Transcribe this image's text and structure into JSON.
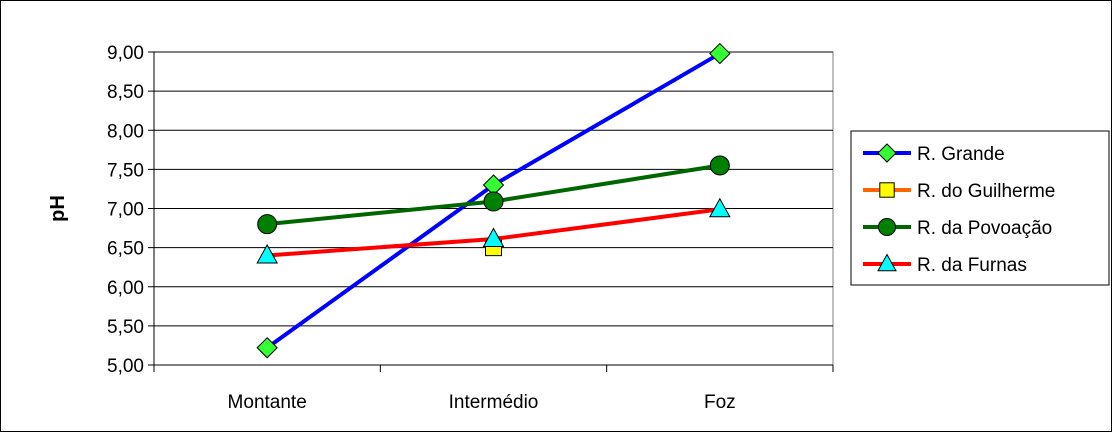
{
  "chart_data": {
    "type": "line",
    "ylabel": "pH",
    "xlabel": "",
    "ylim": [
      5.0,
      9.0
    ],
    "ytick_step": 0.5,
    "yticks": [
      "5,00",
      "5,50",
      "6,00",
      "6,50",
      "7,00",
      "7,50",
      "8,00",
      "8,50",
      "9,00"
    ],
    "categories": [
      "Montante",
      "Intermédio",
      "Foz"
    ],
    "grid": true,
    "legend_position": "right",
    "series": [
      {
        "name": "R. Grande",
        "values": [
          5.22,
          7.3,
          8.98
        ],
        "line_color": "#0000ff",
        "marker": "diamond",
        "marker_color": "#33ff33"
      },
      {
        "name": "R. do Guilherme",
        "values": [
          null,
          6.5,
          null
        ],
        "line_color": "#ff6600",
        "marker": "square",
        "marker_color": "#ffff00"
      },
      {
        "name": "R. da Povoação",
        "values": [
          6.8,
          7.09,
          7.55
        ],
        "line_color": "#006600",
        "marker": "circle",
        "marker_color": "#008000"
      },
      {
        "name": "R. da Furnas",
        "values": [
          6.4,
          6.61,
          6.99
        ],
        "line_color": "#ff0000",
        "marker": "triangle",
        "marker_color": "#00ffff"
      }
    ]
  }
}
